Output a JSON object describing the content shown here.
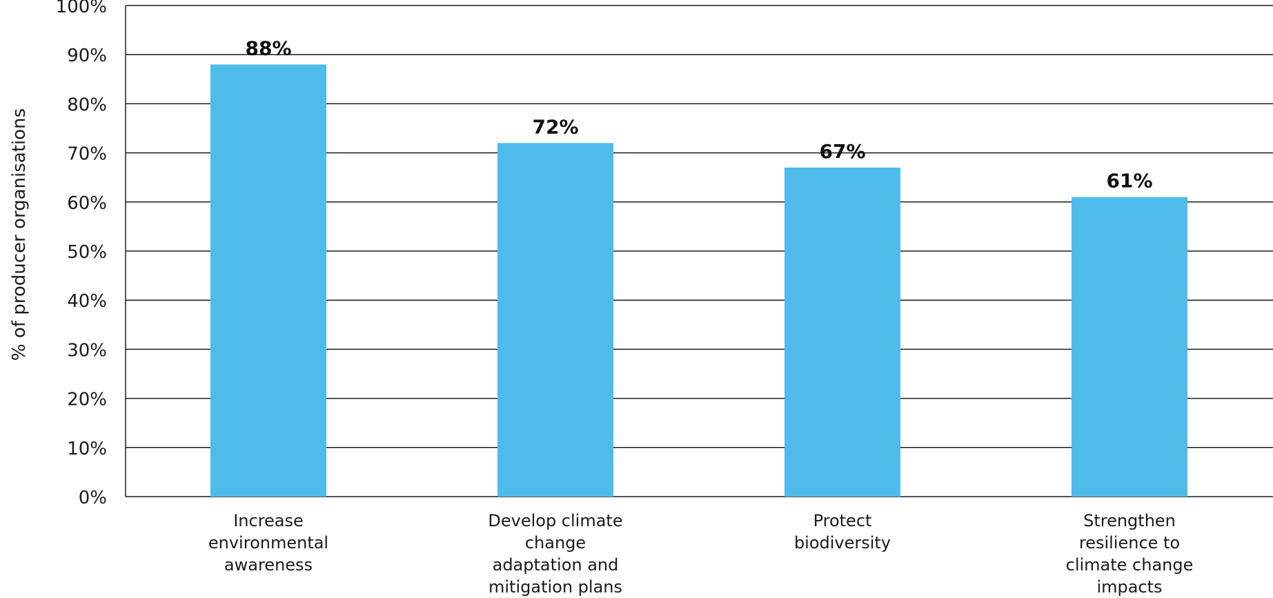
{
  "chart_data": {
    "type": "bar",
    "categories": [
      "Increase environmental awareness",
      "Develop climate change adaptation and mitigation plans",
      "Protect biodiversity",
      "Strengthen resilience to climate change impacts"
    ],
    "category_lines": [
      [
        "Increase",
        "environmental",
        "awareness"
      ],
      [
        "Develop climate",
        "change",
        "adaptation and",
        "mitigation plans"
      ],
      [
        "Protect",
        "biodiversity"
      ],
      [
        "Strengthen",
        "resilience to",
        "climate change",
        "impacts"
      ]
    ],
    "values": [
      88,
      72,
      67,
      61
    ],
    "data_labels": [
      "88%",
      "72%",
      "67%",
      "61%"
    ],
    "ylabel": "% of producer organisations",
    "yticks": [
      "0%",
      "10%",
      "20%",
      "30%",
      "40%",
      "50%",
      "60%",
      "70%",
      "80%",
      "90%",
      "100%"
    ],
    "ylim": [
      0,
      100
    ],
    "grid": true,
    "bar_color": "#4fbbeb",
    "grid_color": "#1a1a1a"
  }
}
